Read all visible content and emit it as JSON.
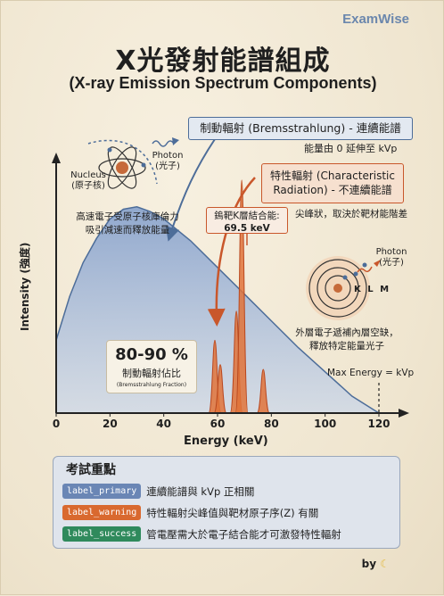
{
  "brand": "ExamWise",
  "title": "X光發射能譜組成",
  "subtitle": "(X-ray Emission Spectrum Components)",
  "brems_box": {
    "label": "制動輻射 (Bremsstrahlung) - 連續能譜",
    "note": "能量由 0 延伸至 kVp"
  },
  "char_box": {
    "line1": "特性輻射 (Characteristic",
    "line2": "Radiation) - 不連續能譜",
    "note": "尖峰狀，取決於靶材能階差"
  },
  "k_shell": {
    "line1": "鎢靶K層結合能:",
    "line2": "69.5 keV"
  },
  "nucleus": {
    "label": "Nucleus",
    "label_zh": "(原子核)",
    "photon": "Photon",
    "photon_zh": "(光子)",
    "caption1": "高速電子受原子核庫倫力",
    "caption2": "吸引減速而釋放能量"
  },
  "atom": {
    "photon": "Photon",
    "photon_zh": "(光子)",
    "shells": "K L M",
    "caption1": "外層電子遞補內層空缺，",
    "caption2": "釋放特定能量光子"
  },
  "fraction": {
    "percent": "80-90 %",
    "label": "制動輻射佔比",
    "sub": "(Bremsstrahlung Fraction)"
  },
  "max_energy": "Max Energy = kVp",
  "chart_data": {
    "type": "area",
    "xlabel": "Energy (keV)",
    "ylabel": "Intensity (強度)",
    "xlim": [
      0,
      120
    ],
    "xticks": [
      0,
      20,
      40,
      60,
      80,
      100,
      120
    ],
    "series": [
      {
        "x": [
          0,
          5,
          10,
          15,
          20,
          25,
          30,
          35,
          40,
          50,
          60,
          70,
          80,
          90,
          100,
          110,
          120
        ],
        "values": [
          0.3,
          0.48,
          0.62,
          0.72,
          0.8,
          0.84,
          0.85,
          0.83,
          0.8,
          0.71,
          0.6,
          0.49,
          0.38,
          0.27,
          0.17,
          0.07,
          0.0
        ]
      }
    ],
    "peaks": [
      {
        "x": 59.0,
        "height": 0.3
      },
      {
        "x": 61.0,
        "height": 0.2
      },
      {
        "x": 67.0,
        "height": 0.42
      },
      {
        "x": 69.0,
        "height": 0.96
      },
      {
        "x": 77.0,
        "height": 0.18
      }
    ]
  },
  "exam": {
    "title": "考試重點",
    "items": [
      {
        "tag": "label_primary",
        "color": "#6a86b5",
        "text": "連續能譜與 kVp 正相關"
      },
      {
        "tag": "label_warning",
        "color": "#d9692f",
        "text": "特性輻射尖峰值與靶材原子序(Z) 有關"
      },
      {
        "tag": "label_success",
        "color": "#2f8a5c",
        "text": "管電壓需大於電子結合能才可激發特性輻射"
      }
    ]
  },
  "by": "by",
  "colors": {
    "area": "#8ba6cf",
    "peak": "#e0733a",
    "axis": "#222222"
  }
}
